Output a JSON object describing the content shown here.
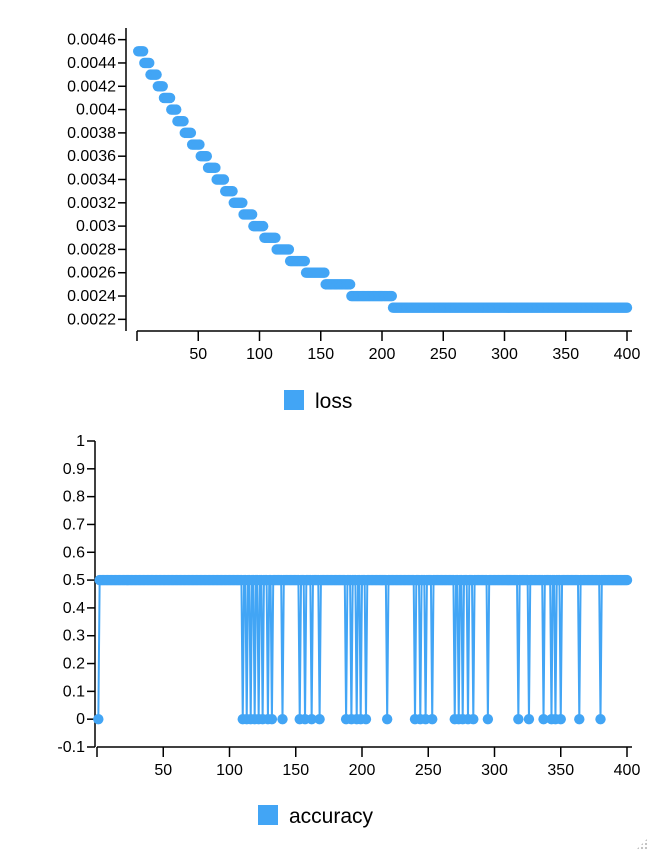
{
  "colors": {
    "series": "#42a5f5",
    "axis": "#000000",
    "background": "#ffffff"
  },
  "chart_data": [
    {
      "type": "scatter",
      "legend": {
        "label": "loss",
        "placement": "bottom-center"
      },
      "xlim": [
        0,
        400
      ],
      "ylim": [
        0.0021,
        0.0047
      ],
      "x_ticks": [
        "50",
        "100",
        "150",
        "200",
        "250",
        "300",
        "350",
        "400"
      ],
      "y_ticks": [
        "0.0022",
        "0.0024",
        "0.0026",
        "0.0028",
        "0.003",
        "0.0032",
        "0.0034",
        "0.0036",
        "0.0038",
        "0.004",
        "0.0042",
        "0.0044",
        "0.0046"
      ],
      "x_tick_values": [
        50,
        100,
        150,
        200,
        250,
        300,
        350,
        400
      ],
      "y_tick_values": [
        0.0022,
        0.0024,
        0.0026,
        0.0028,
        0.003,
        0.0032,
        0.0034,
        0.0036,
        0.0038,
        0.004,
        0.0042,
        0.0044,
        0.0046
      ],
      "steps": [
        {
          "x_start": 1,
          "x_end": 5,
          "y": 0.0045
        },
        {
          "x_start": 6,
          "x_end": 10,
          "y": 0.0044
        },
        {
          "x_start": 11,
          "x_end": 16,
          "y": 0.0043
        },
        {
          "x_start": 17,
          "x_end": 21,
          "y": 0.0042
        },
        {
          "x_start": 22,
          "x_end": 27,
          "y": 0.0041
        },
        {
          "x_start": 28,
          "x_end": 32,
          "y": 0.004
        },
        {
          "x_start": 33,
          "x_end": 38,
          "y": 0.0039
        },
        {
          "x_start": 39,
          "x_end": 44,
          "y": 0.0038
        },
        {
          "x_start": 45,
          "x_end": 51,
          "y": 0.0037
        },
        {
          "x_start": 52,
          "x_end": 57,
          "y": 0.0036
        },
        {
          "x_start": 58,
          "x_end": 64,
          "y": 0.0035
        },
        {
          "x_start": 65,
          "x_end": 71,
          "y": 0.0034
        },
        {
          "x_start": 72,
          "x_end": 78,
          "y": 0.0033
        },
        {
          "x_start": 79,
          "x_end": 86,
          "y": 0.0032
        },
        {
          "x_start": 87,
          "x_end": 94,
          "y": 0.0031
        },
        {
          "x_start": 95,
          "x_end": 103,
          "y": 0.003
        },
        {
          "x_start": 104,
          "x_end": 113,
          "y": 0.0029
        },
        {
          "x_start": 114,
          "x_end": 124,
          "y": 0.0028
        },
        {
          "x_start": 125,
          "x_end": 137,
          "y": 0.0027
        },
        {
          "x_start": 138,
          "x_end": 153,
          "y": 0.0026
        },
        {
          "x_start": 154,
          "x_end": 174,
          "y": 0.0025
        },
        {
          "x_start": 175,
          "x_end": 208,
          "y": 0.0024
        },
        {
          "x_start": 209,
          "x_end": 400,
          "y": 0.0023
        }
      ]
    },
    {
      "type": "line",
      "legend": {
        "label": "accuracy",
        "placement": "bottom-center"
      },
      "xlim": [
        0,
        400
      ],
      "ylim": [
        -0.1,
        1
      ],
      "x_ticks": [
        "50",
        "100",
        "150",
        "200",
        "250",
        "300",
        "350",
        "400"
      ],
      "y_ticks": [
        "-0.1",
        "0",
        "0.1",
        "0.2",
        "0.3",
        "0.4",
        "0.5",
        "0.6",
        "0.7",
        "0.8",
        "0.9",
        "1"
      ],
      "x_tick_values": [
        50,
        100,
        150,
        200,
        250,
        300,
        350,
        400
      ],
      "y_tick_values": [
        -0.1,
        0,
        0.1,
        0.2,
        0.3,
        0.4,
        0.5,
        0.6,
        0.7,
        0.8,
        0.9,
        1
      ],
      "high_value": 0.5,
      "low_value": 0,
      "x_range": [
        1,
        400
      ],
      "zero_epochs": [
        1,
        110,
        113,
        116,
        119,
        122,
        125,
        129,
        132,
        140,
        153,
        157,
        162,
        168,
        188,
        192,
        196,
        199,
        203,
        219,
        240,
        244,
        248,
        253,
        270,
        273,
        276,
        280,
        284,
        295,
        318,
        326,
        337,
        343,
        346,
        350,
        364,
        380
      ]
    }
  ]
}
